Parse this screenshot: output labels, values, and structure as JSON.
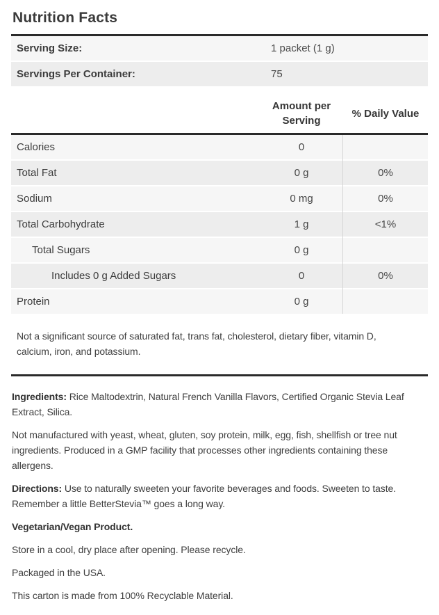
{
  "title": "Nutrition Facts",
  "serving_table": {
    "rows": [
      {
        "label": "Serving Size:",
        "value": "1 packet (1 g)"
      },
      {
        "label": "Servings Per Container:",
        "value": "75"
      }
    ]
  },
  "nutrient_table": {
    "headers": {
      "amount": "Amount per Serving",
      "daily_value": "% Daily Value"
    },
    "rows": [
      {
        "label": "Calories",
        "indent": 0,
        "amount": "0",
        "dv": ""
      },
      {
        "label": "Total Fat",
        "indent": 0,
        "amount": "0 g",
        "dv": "0%"
      },
      {
        "label": "Sodium",
        "indent": 0,
        "amount": "0 mg",
        "dv": "0%"
      },
      {
        "label": "Total Carbohydrate",
        "indent": 0,
        "amount": "1 g",
        "dv": "<1%"
      },
      {
        "label": "Total Sugars",
        "indent": 1,
        "amount": "0 g",
        "dv": ""
      },
      {
        "label": "Includes 0 g Added Sugars",
        "indent": 2,
        "amount": "0",
        "dv": "0%"
      },
      {
        "label": "Protein",
        "indent": 0,
        "amount": "0 g",
        "dv": ""
      }
    ],
    "footnote": "Not a significant source of saturated fat, trans fat, cholesterol, dietary fiber, vitamin D, calcium, iron, and potassium."
  },
  "info_sections": [
    {
      "lead": "Ingredients:",
      "text": " Rice Maltodextrin, Natural French Vanilla Flavors, Certified Organic Stevia Leaf Extract, Silica."
    },
    {
      "lead": "",
      "text": "Not manufactured with yeast, wheat, gluten, soy protein, milk, egg, fish, shellfish or tree nut ingredients. Produced in a GMP facility that processes other ingredients containing these allergens."
    },
    {
      "lead": "Directions:",
      "text": " Use to naturally sweeten your favorite beverages and foods. Sweeten to taste. Remember a little BetterStevia™ goes a long way."
    },
    {
      "lead": "Vegetarian/Vegan Product.",
      "text": ""
    },
    {
      "lead": "",
      "text": "Store in a cool, dry place after opening. Please recycle."
    },
    {
      "lead": "",
      "text": "Packaged in the USA."
    },
    {
      "lead": "",
      "text": "This carton is made from 100% Recyclable Material."
    }
  ],
  "colors": {
    "row_light": "#f6f6f6",
    "row_dark": "#ededed",
    "rule": "#2a2a2a",
    "divider": "#d5d5d5",
    "text": "#3e3e3e",
    "title_text": "#3a3a3a"
  }
}
